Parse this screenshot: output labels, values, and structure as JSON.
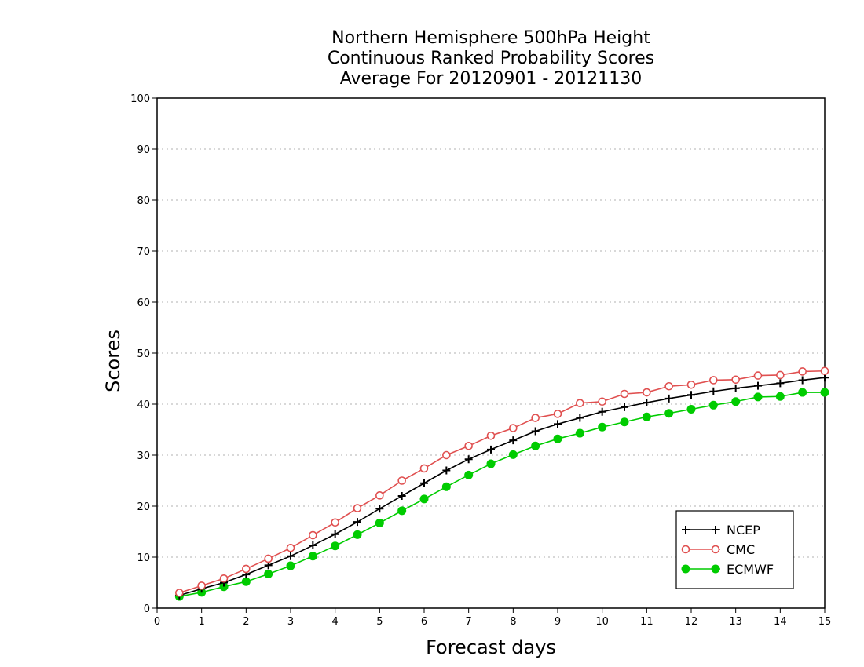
{
  "chart_data": {
    "type": "line",
    "title": [
      "Northern Hemisphere 500hPa Height",
      "Continuous Ranked Probability Scores",
      "Average For 20120901 - 20121130"
    ],
    "xlabel": "Forecast days",
    "ylabel": "Scores",
    "xlim": [
      0,
      15
    ],
    "ylim": [
      0,
      100
    ],
    "xticks": [
      "0",
      "1",
      "2",
      "3",
      "4",
      "5",
      "6",
      "7",
      "8",
      "9",
      "10",
      "11",
      "12",
      "13",
      "14",
      "15"
    ],
    "yticks": [
      "0",
      "10",
      "20",
      "30",
      "40",
      "50",
      "60",
      "70",
      "80",
      "90",
      "100"
    ],
    "grid": "horizontal dotted",
    "legend_position": "bottom-right",
    "x": [
      0.5,
      1,
      1.5,
      2,
      2.5,
      3,
      3.5,
      4,
      4.5,
      5,
      5.5,
      6,
      6.5,
      7,
      7.5,
      8,
      8.5,
      9,
      9.5,
      10,
      10.5,
      11,
      11.5,
      12,
      12.5,
      13,
      13.5,
      14,
      14.5,
      15
    ],
    "series": [
      {
        "name": "NCEP",
        "color": "#000000",
        "marker": "plus",
        "values": [
          2.5,
          3.8,
          5.0,
          6.6,
          8.4,
          10.2,
          12.3,
          14.5,
          16.9,
          19.5,
          22.0,
          24.5,
          27.0,
          29.2,
          31.1,
          32.9,
          34.7,
          36.1,
          37.3,
          38.5,
          39.4,
          40.3,
          41.1,
          41.8,
          42.5,
          43.1,
          43.6,
          44.1,
          44.7,
          45.2
        ]
      },
      {
        "name": "CMC",
        "color": "#e05050",
        "marker": "open-circle",
        "values": [
          3.0,
          4.4,
          5.8,
          7.7,
          9.7,
          11.8,
          14.3,
          16.8,
          19.6,
          22.1,
          25.0,
          27.4,
          30.0,
          31.8,
          33.8,
          35.3,
          37.3,
          38.1,
          40.2,
          40.5,
          42.0,
          42.3,
          43.5,
          43.8,
          44.7,
          44.8,
          45.6,
          45.7,
          46.4,
          46.5
        ]
      },
      {
        "name": "ECMWF",
        "color": "#00cc00",
        "marker": "filled-circle",
        "values": [
          2.3,
          3.1,
          4.2,
          5.2,
          6.7,
          8.3,
          10.2,
          12.2,
          14.4,
          16.7,
          19.1,
          21.4,
          23.8,
          26.1,
          28.3,
          30.1,
          31.8,
          33.2,
          34.3,
          35.5,
          36.5,
          37.5,
          38.2,
          39.0,
          39.8,
          40.5,
          41.4,
          41.5,
          42.3,
          42.3
        ]
      }
    ]
  }
}
